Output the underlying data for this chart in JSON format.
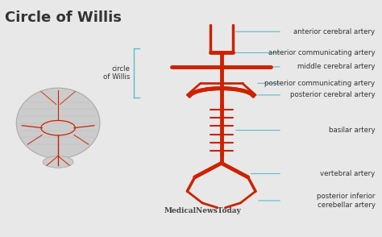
{
  "title": "Circle of Willis",
  "title_fontsize": 13,
  "bg_color": "#e8e8e8",
  "artery_color": "#cc2200",
  "line_color": "#5bbccc",
  "text_color": "#333333",
  "label_fontsize": 6.2,
  "labels": [
    "anterior cerebral artery",
    "anterior communicating artery",
    "middle cerebral artery",
    "posterior communicating artery",
    "posterior cerebral artery",
    "basilar artery",
    "vertebral artery",
    "posterior inferior\ncerebellar artery"
  ],
  "circle_label": "circle\nof Willis",
  "watermark": "MedicalNewsToday",
  "watermark_fontsize": 6.5
}
